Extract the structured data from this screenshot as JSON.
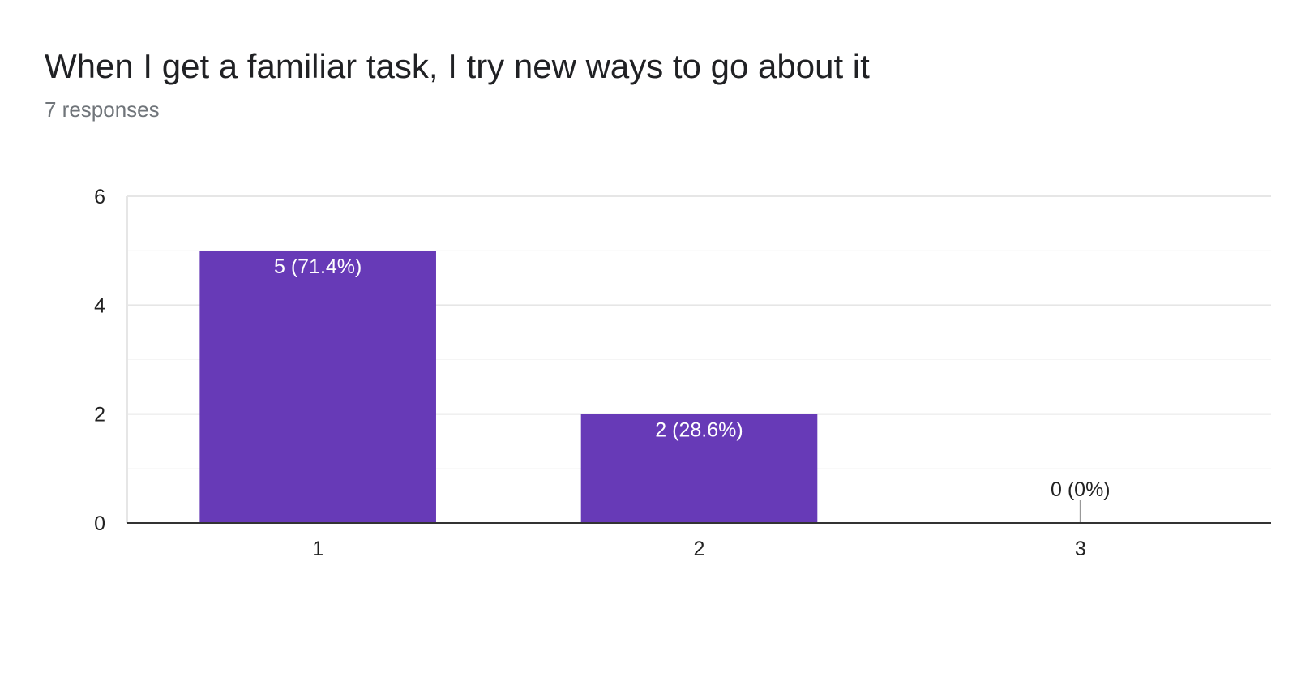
{
  "header": {
    "title": "When I get a familiar task, I try new ways to go about it",
    "responses": "7 responses"
  },
  "chart_data": {
    "type": "bar",
    "categories": [
      "1",
      "2",
      "3"
    ],
    "values": [
      5,
      2,
      0
    ],
    "data_labels": [
      "5 (71.4%)",
      "2 (28.6%)",
      "0 (0%)"
    ],
    "ylim": [
      0,
      6
    ],
    "yticks": [
      0,
      2,
      4,
      6
    ],
    "ytick_labels": [
      "0",
      "2",
      "4",
      "6"
    ],
    "grid": true,
    "bar_color": "#673ab7",
    "title": "",
    "xlabel": "",
    "ylabel": ""
  }
}
